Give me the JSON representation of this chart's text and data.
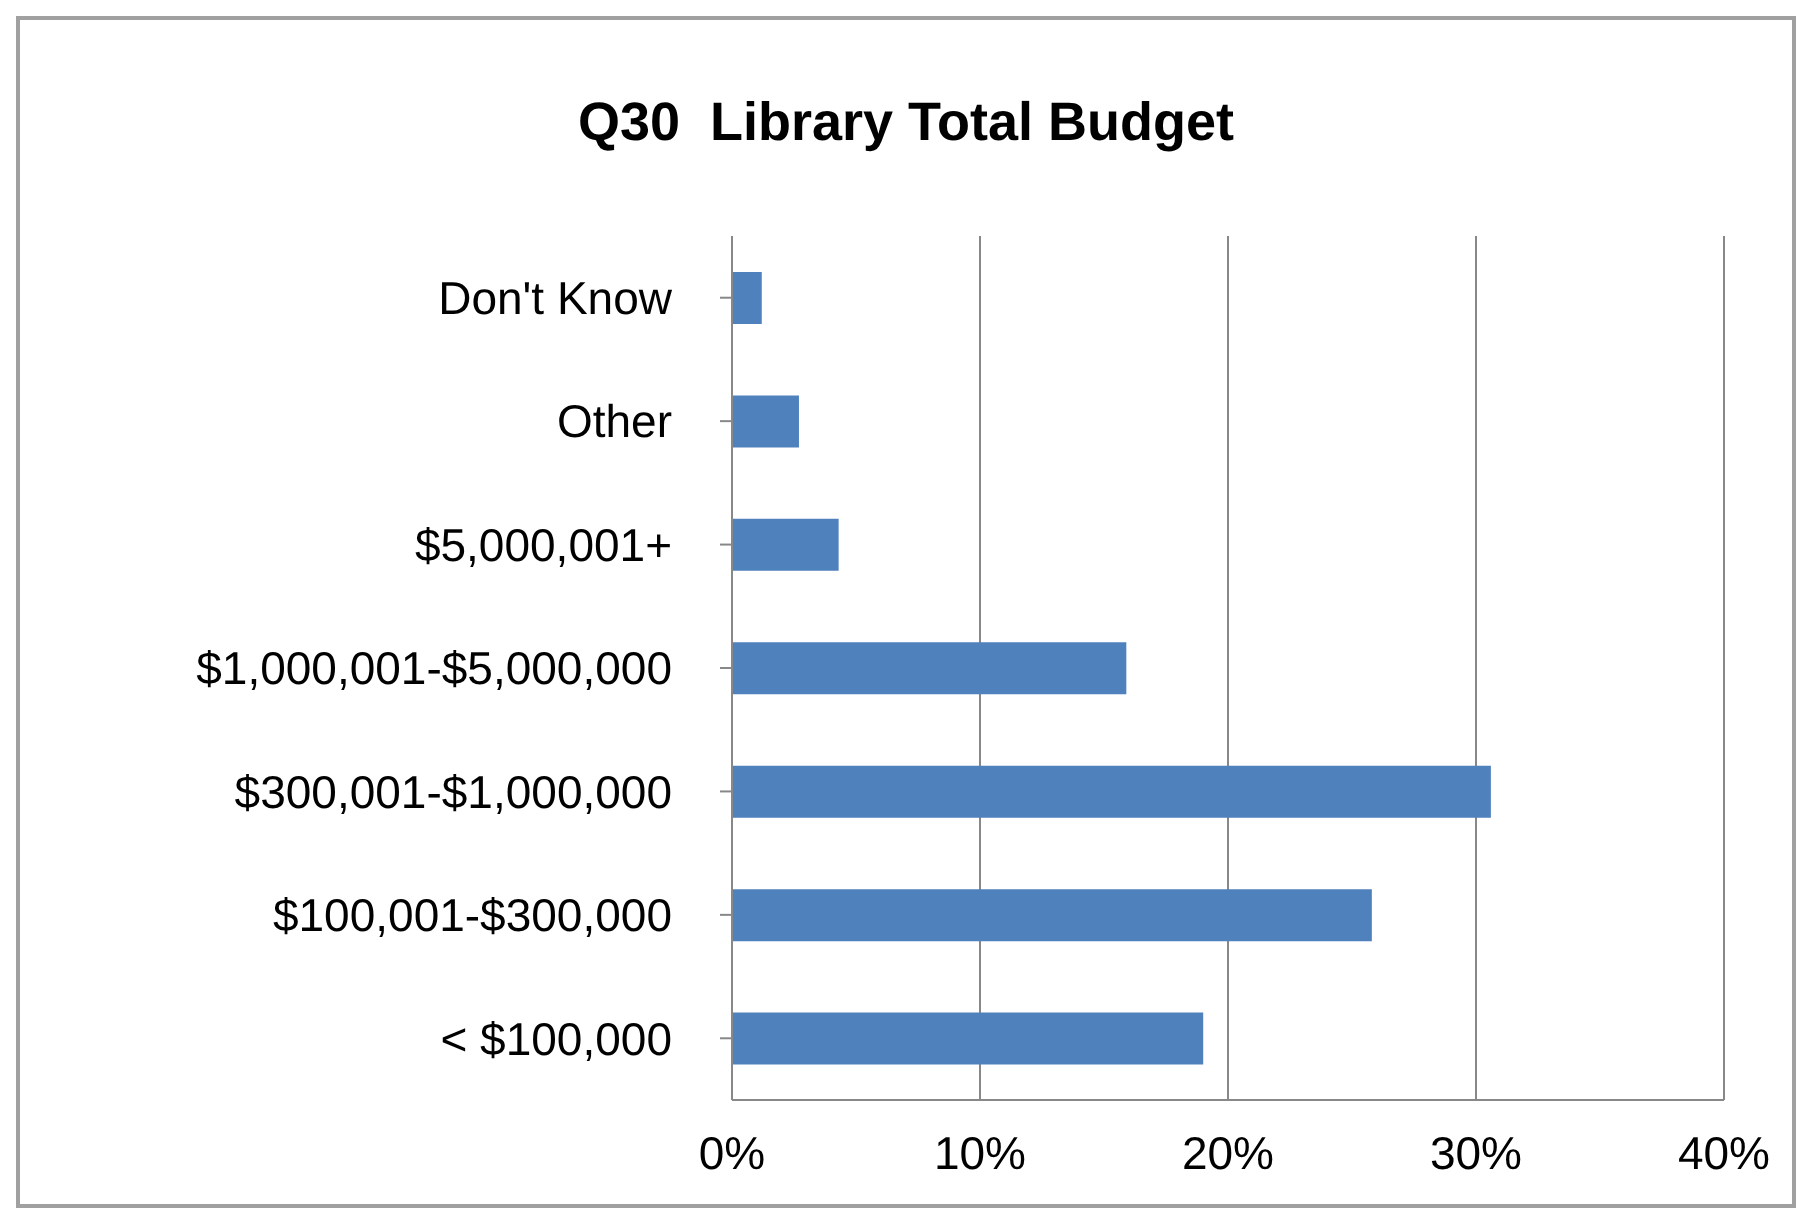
{
  "chart_data": {
    "type": "bar",
    "orientation": "horizontal",
    "title": "Q30  Library Total Budget",
    "categories": [
      "Don't Know",
      "Other",
      "$5,000,001+",
      "$1,000,001-$5,000,000",
      "$300,001-$1,000,000",
      "$100,001-$300,000",
      "< $100,000"
    ],
    "values": [
      1.2,
      2.7,
      4.3,
      15.9,
      30.6,
      25.8,
      19.0
    ],
    "color": "#4f81bd",
    "xlim": [
      0,
      40
    ],
    "xticks": [
      {
        "value": 0,
        "label": "0%"
      },
      {
        "value": 10,
        "label": "10%"
      },
      {
        "value": 20,
        "label": "20%"
      },
      {
        "value": 30,
        "label": "30%"
      },
      {
        "value": 40,
        "label": "40%"
      }
    ],
    "grid": "x",
    "legend": false
  }
}
